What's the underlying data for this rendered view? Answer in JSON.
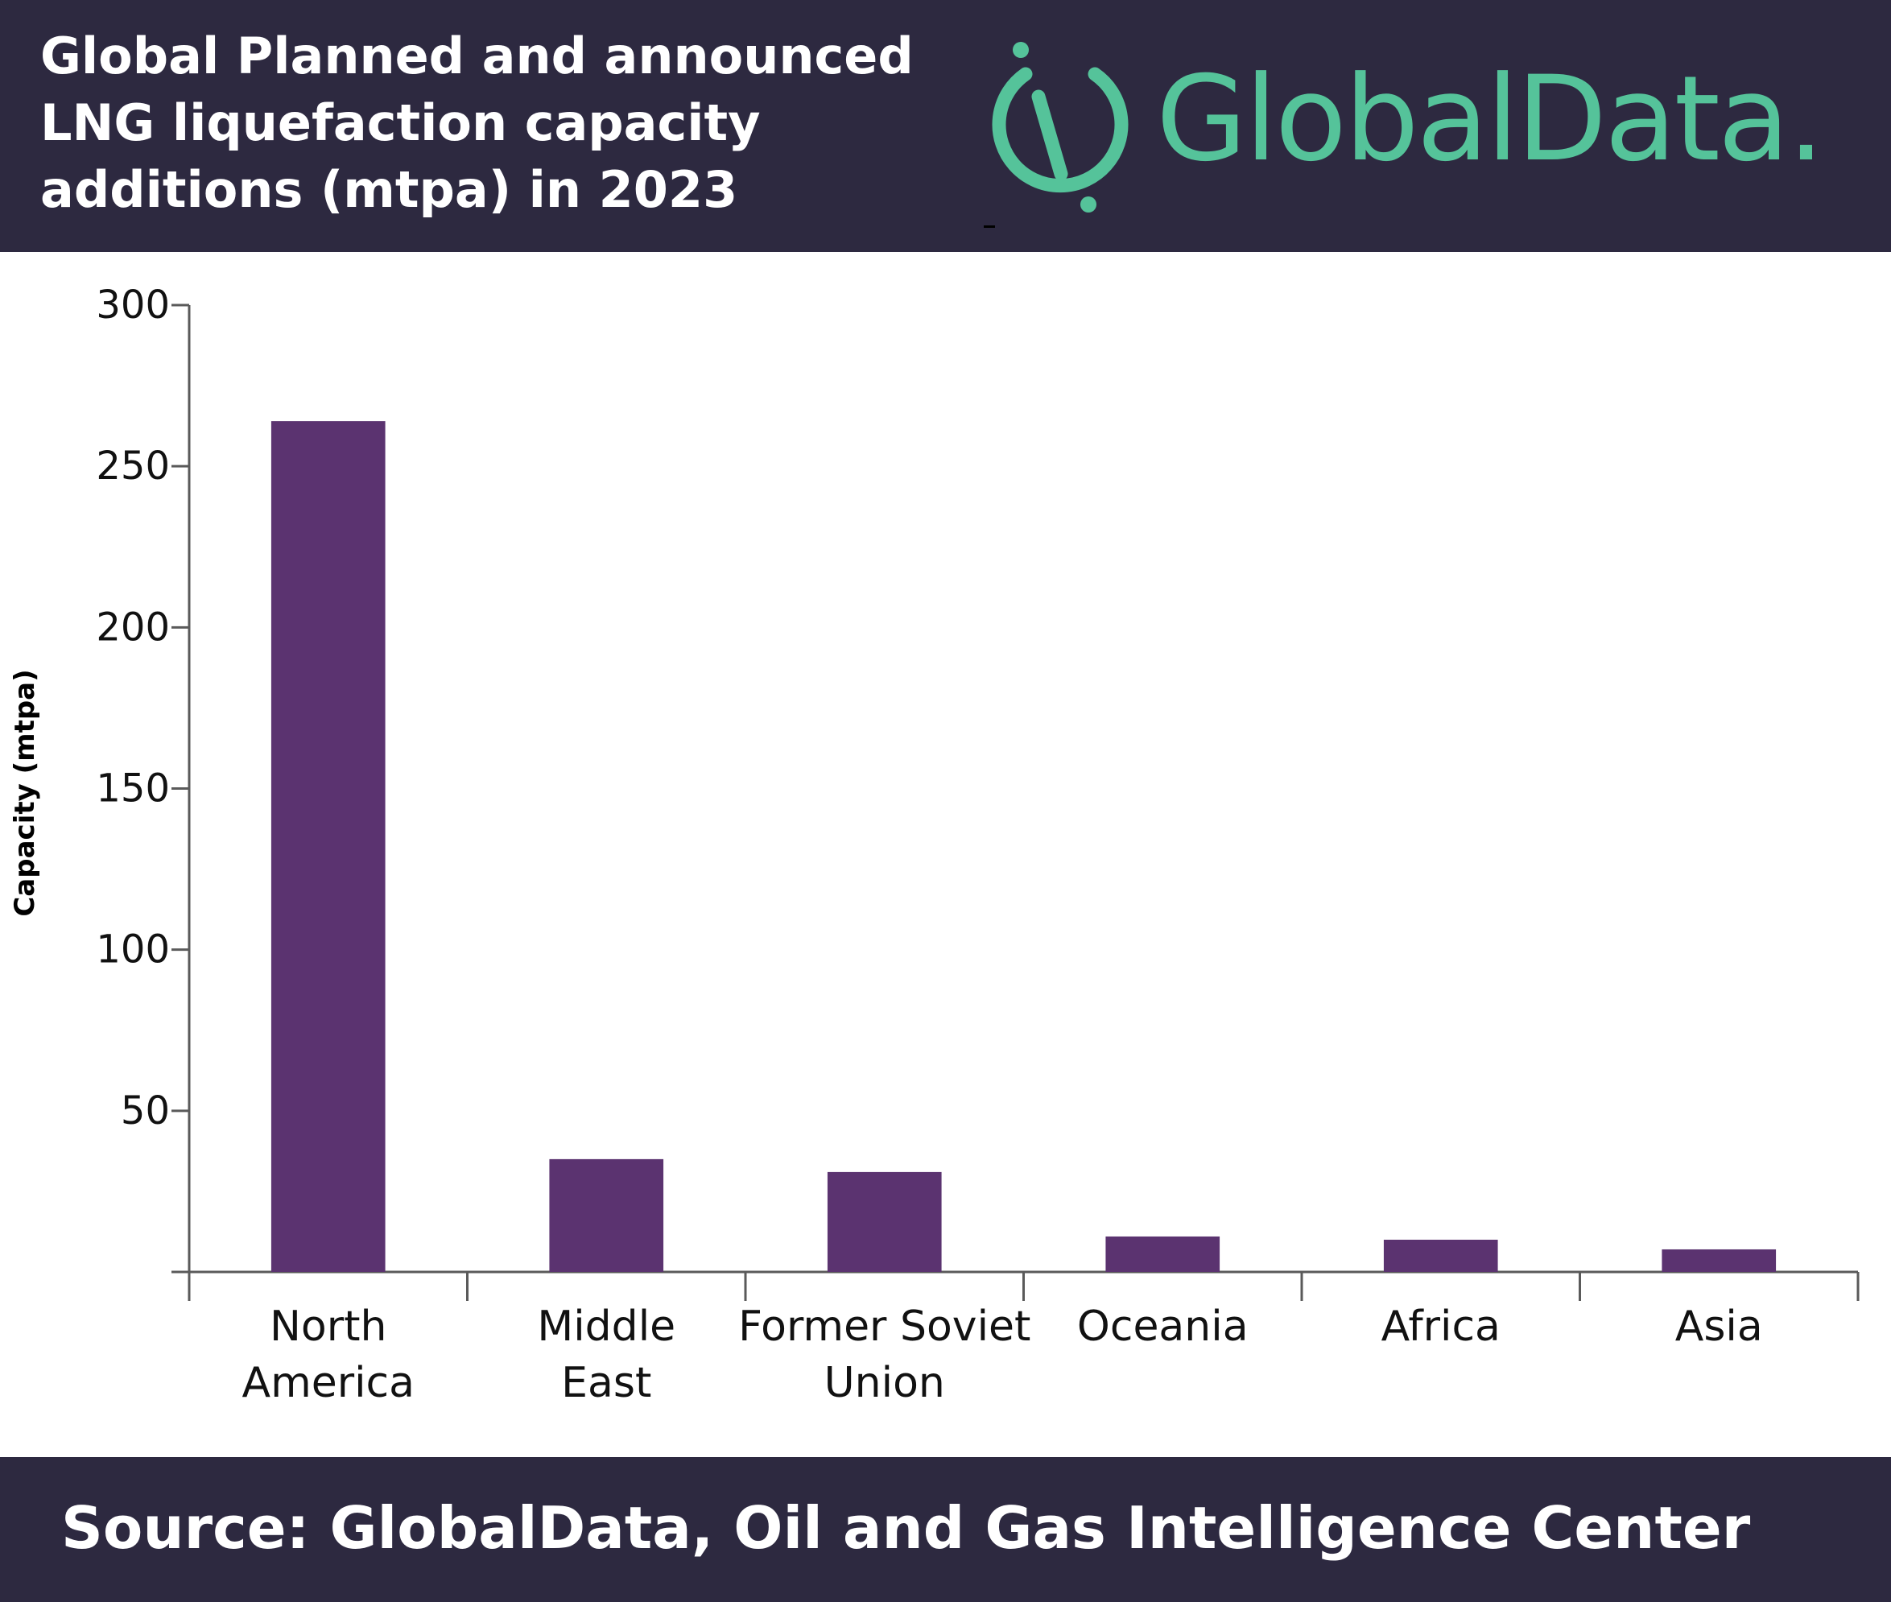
{
  "header": {
    "title": "Global Planned and announced LNG liquefaction capacity additions (mtpa) in 2023",
    "logo_text": "GlobalData.",
    "logo_color": "#55c39a",
    "background": "#2d2940"
  },
  "chart_data": {
    "type": "bar",
    "title": "Global Planned and announced LNG liquefaction capacity additions (mtpa) in 2023",
    "categories": [
      [
        "North",
        "America"
      ],
      [
        "Middle",
        "East"
      ],
      [
        "Former Soviet",
        "Union"
      ],
      [
        "Oceania"
      ],
      [
        "Africa"
      ],
      [
        "Asia"
      ]
    ],
    "values": [
      264,
      35,
      31,
      11,
      10,
      7
    ],
    "ylabel": "Capacity (mtpa)",
    "xlabel": "",
    "ylim": [
      0,
      300
    ],
    "yticks": [
      50,
      100,
      150,
      200,
      250,
      300
    ],
    "bar_color": "#5b3370",
    "axis_color": "#5a5a5a",
    "grid": false,
    "legend": "none"
  },
  "footer": {
    "source": "Source:  GlobalData, Oil and Gas Intelligence Center"
  }
}
